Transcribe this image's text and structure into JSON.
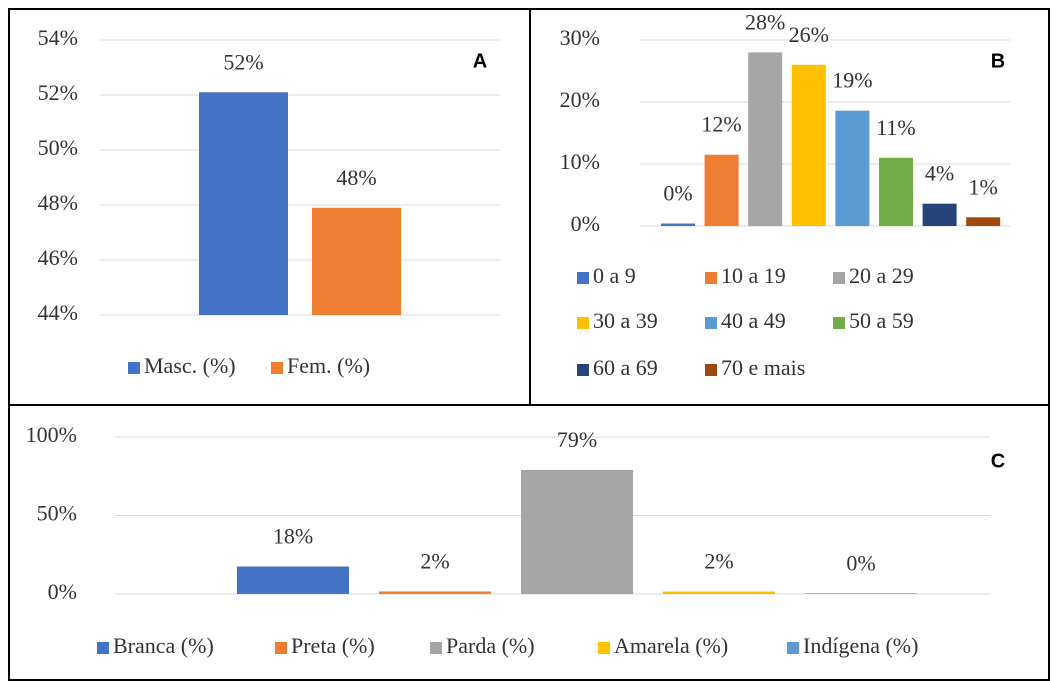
{
  "chart_data": [
    {
      "type": "bar",
      "panel_label": "A",
      "categories": [
        "Masc. (%)",
        "Fem. (%)"
      ],
      "values": [
        52.1,
        47.9
      ],
      "value_labels": [
        "52%",
        "48%"
      ],
      "colors": [
        "#4472c4",
        "#ed7d31"
      ],
      "ylim": [
        44,
        54
      ],
      "yticks": [
        {
          "value": 44,
          "label": "44%"
        },
        {
          "value": 46,
          "label": "46%"
        },
        {
          "value": 48,
          "label": "48%"
        },
        {
          "value": 50,
          "label": "50%"
        },
        {
          "value": 52,
          "label": "52%"
        },
        {
          "value": 54,
          "label": "54%"
        }
      ],
      "grid": true,
      "legend": "bottom"
    },
    {
      "type": "bar",
      "panel_label": "B",
      "categories": [
        "0 a 9",
        "10 a 19",
        "20 a 29",
        "30 a 39",
        "40 a 49",
        "50 a 59",
        "60 a 69",
        "70 e mais"
      ],
      "values": [
        0.4,
        11.5,
        28,
        26,
        18.6,
        11,
        3.6,
        1.4
      ],
      "value_labels": [
        "0%",
        "12%",
        "28%",
        "26%",
        "19%",
        "11%",
        "4%",
        "1%"
      ],
      "colors": [
        "#4472c4",
        "#ed7d31",
        "#a5a5a5",
        "#ffc000",
        "#5b9bd5",
        "#70ad47",
        "#264478",
        "#9e480e"
      ],
      "ylim": [
        0,
        30
      ],
      "yticks": [
        {
          "value": 0,
          "label": "0%"
        },
        {
          "value": 10,
          "label": "10%"
        },
        {
          "value": 20,
          "label": "20%"
        },
        {
          "value": 30,
          "label": "30%"
        }
      ],
      "grid": true,
      "legend": "bottom"
    },
    {
      "type": "bar",
      "panel_label": "C",
      "categories": [
        "Branca (%)",
        "Preta  (%)",
        "Parda  (%)",
        "Amarela  (%)",
        "Indígena (%)"
      ],
      "values": [
        17.5,
        1.6,
        79,
        1.6,
        0.4
      ],
      "value_labels": [
        "18%",
        "2%",
        "79%",
        "2%",
        "0%"
      ],
      "colors": [
        "#4472c4",
        "#ed7d31",
        "#a5a5a5",
        "#ffc000",
        "#5b9bd5"
      ],
      "ylim": [
        0,
        100
      ],
      "yticks": [
        {
          "value": 0,
          "label": "0%"
        },
        {
          "value": 50,
          "label": "50%"
        },
        {
          "value": 100,
          "label": "100%"
        }
      ],
      "grid": true,
      "legend": "bottom"
    }
  ]
}
